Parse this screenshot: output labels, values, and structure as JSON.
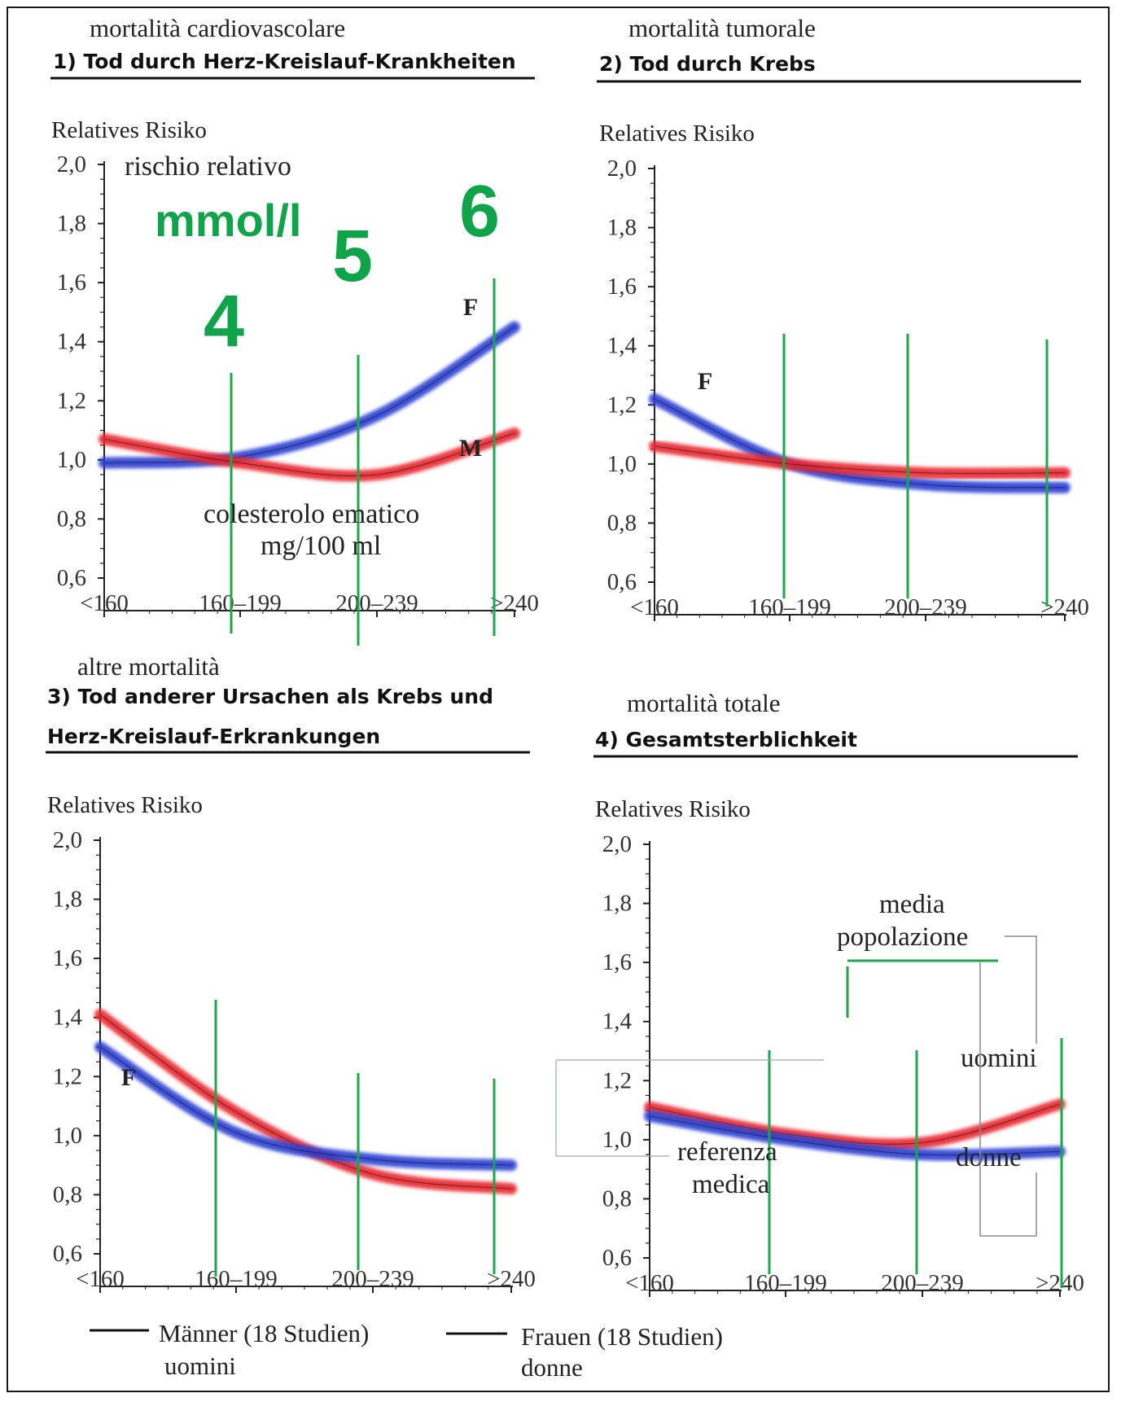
{
  "colors": {
    "men": "#e8262e",
    "women": "#2b3fd3",
    "guide": "#1aa84a",
    "axis": "#222222",
    "text": "#222222"
  },
  "labels": {
    "top_left_italian": "mortalità cardiovascolare",
    "top_right_italian": "mortalità tumorale",
    "bottom_left_italian": "altre mortalità",
    "bottom_right_italian": "mortalità totale",
    "rischio_relativo": "rischio relativo",
    "mmol": "mmol/l",
    "n4": "4",
    "n5": "5",
    "n6": "6",
    "chol_line1": "colesterolo ematico",
    "chol_line2": "mg/100 ml",
    "media_line1": "media",
    "media_line2": "popolazione",
    "referenza_line1": "referenza",
    "referenza_line2": "medica",
    "uomini": "uomini",
    "donne": "donne"
  },
  "legend": {
    "men_de": "Männer (18 Studien)",
    "men_it": "uomini",
    "women_de": "Frauen (18 Studien)",
    "women_it": "donne"
  },
  "chart_data": [
    {
      "type": "line",
      "title": "1) Tod durch Herz-Kreislauf-Krankheiten",
      "ylabel": "Relatives Risiko",
      "ylim": [
        0.6,
        2.0
      ],
      "yticks": [
        "2,0",
        "1,8",
        "1,6",
        "1,4",
        "1,2",
        "1,0",
        "0,8",
        "0,6"
      ],
      "categories": [
        "<160",
        "160–199",
        "200–239",
        ">240"
      ],
      "series": [
        {
          "name": "F",
          "color": "#2b3fd3",
          "values": [
            0.99,
            1.01,
            1.15,
            1.45
          ]
        },
        {
          "name": "M",
          "color": "#e8262e",
          "values": [
            1.07,
            0.99,
            0.95,
            1.09
          ]
        }
      ]
    },
    {
      "type": "line",
      "title": "2) Tod durch Krebs",
      "ylabel": "Relatives Risiko",
      "ylim": [
        0.6,
        2.0
      ],
      "yticks": [
        "2,0",
        "1,8",
        "1,6",
        "1,4",
        "1,2",
        "1,0",
        "0,8",
        "0,6"
      ],
      "categories": [
        "<160",
        "160–199",
        "200–239",
        ">240"
      ],
      "series": [
        {
          "name": "F",
          "color": "#2b3fd3",
          "values": [
            1.22,
            1.0,
            0.93,
            0.92
          ]
        },
        {
          "name": "",
          "color": "#e8262e",
          "values": [
            1.06,
            1.0,
            0.97,
            0.97
          ]
        }
      ]
    },
    {
      "type": "line",
      "title": "3) Tod anderer Ursachen als Krebs und Herz-Kreislauf-Erkrankungen",
      "ylabel": "Relatives Risiko",
      "ylim": [
        0.6,
        2.0
      ],
      "yticks": [
        "2,0",
        "1,8",
        "1,6",
        "1,4",
        "1,2",
        "1,0",
        "0,8",
        "0,6"
      ],
      "categories": [
        "<160",
        "160–199",
        "200–239",
        ">240"
      ],
      "series": [
        {
          "name": "",
          "color": "#e8262e",
          "values": [
            1.41,
            1.08,
            0.87,
            0.82
          ]
        },
        {
          "name": "F",
          "color": "#2b3fd3",
          "values": [
            1.3,
            1.01,
            0.92,
            0.9
          ]
        }
      ]
    },
    {
      "type": "line",
      "title": "4) Gesamtsterblichkeit",
      "ylabel": "Relatives Risiko",
      "ylim": [
        0.6,
        2.0
      ],
      "yticks": [
        "2,0",
        "1,8",
        "1,6",
        "1,4",
        "1,2",
        "1,0",
        "0,8",
        "0,6"
      ],
      "categories": [
        "<160",
        "160–199",
        "200–239",
        ">240"
      ],
      "series": [
        {
          "name": "uomini",
          "color": "#e8262e",
          "values": [
            1.11,
            1.02,
            0.99,
            1.12
          ]
        },
        {
          "name": "donne",
          "color": "#2b3fd3",
          "values": [
            1.08,
            1.0,
            0.95,
            0.96
          ]
        }
      ]
    }
  ]
}
